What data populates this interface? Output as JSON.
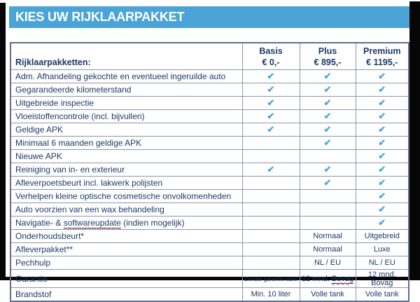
{
  "banner": {
    "title": "KIES UW RIJKLAARPAKKET"
  },
  "colors": {
    "banner_blue": "#4AA4D7",
    "check_blue": "#4FA8DA",
    "text_navy": "#1E3A66",
    "grid_line": "#8A97AF",
    "spellcheck_red": "#D94F4F",
    "frame_black": "#060606"
  },
  "table": {
    "corner_label": "Rijklaarpakketten:",
    "check_glyph": "✔",
    "columns": [
      {
        "name": "Basis",
        "price": "€ 0,-"
      },
      {
        "name": "Plus",
        "price": "€ 895,-"
      },
      {
        "name": "Premium",
        "price": "€ 1195,-"
      }
    ],
    "rows": [
      {
        "label": "Adm. Afhandeling gekochte en eventueel ingeruilde auto",
        "cells": [
          "check",
          "check",
          "check"
        ]
      },
      {
        "label": "Gegarandeerde kilometerstand",
        "cells": [
          "check",
          "check",
          "check"
        ]
      },
      {
        "label": "Uitgebreide inspectie",
        "cells": [
          "check",
          "check",
          "check"
        ]
      },
      {
        "label": "Vloeistoffencontrole (incl. bijvullen)",
        "cells": [
          "check",
          "check",
          "check"
        ]
      },
      {
        "label": "Geldige APK",
        "cells": [
          "check",
          "check",
          "check"
        ]
      },
      {
        "label": "Minimaal 6 maanden geldige APK",
        "cells": [
          "",
          "check",
          "check"
        ]
      },
      {
        "label": "Nieuwe APK",
        "cells": [
          "",
          "",
          "check"
        ]
      },
      {
        "label": "Reiniging van in- en exterieur",
        "cells": [
          "check",
          "check",
          "check"
        ]
      },
      {
        "label": "Afleverpoetsbeurt incl. lakwerk polijsten",
        "cells": [
          "",
          "check",
          "check"
        ]
      },
      {
        "label": "Verhelpen kleine optische cosmetische onvolkomenheden",
        "cells": [
          "",
          "",
          "check"
        ]
      },
      {
        "label": "Auto voorzien van een wax behandeling",
        "cells": [
          "",
          "",
          "check"
        ]
      },
      {
        "label_parts": {
          "prefix": "Navigatie- & ",
          "underlined": "softwareupdate",
          "suffix": " (indien mogelijk)"
        },
        "cells": [
          "",
          "",
          "check"
        ]
      },
      {
        "label": "Onderhoudsbeurt*",
        "cells": [
          "",
          "Normaal",
          "Uitgebreid"
        ]
      },
      {
        "label": "Afleverpakket**",
        "cells": [
          "",
          "Normaal",
          "Luxe"
        ]
      },
      {
        "label": "Pechhulp",
        "cells": [
          "",
          "NL / EU",
          "NL / EU"
        ]
      },
      {
        "label": "Garantie",
        "tall": true,
        "cells": [
          {
            "text": "Zonder garantie label",
            "small": true
          },
          {
            "prefix": "12 mnd. ",
            "underlined": "Bovag"
          },
          {
            "prefix": "12 mnd. ",
            "underlined": "Bovag"
          }
        ]
      },
      {
        "label": "Brandstof",
        "cells": [
          "Min. 10 liter",
          "Volle tank",
          "Volle tank"
        ]
      }
    ]
  }
}
